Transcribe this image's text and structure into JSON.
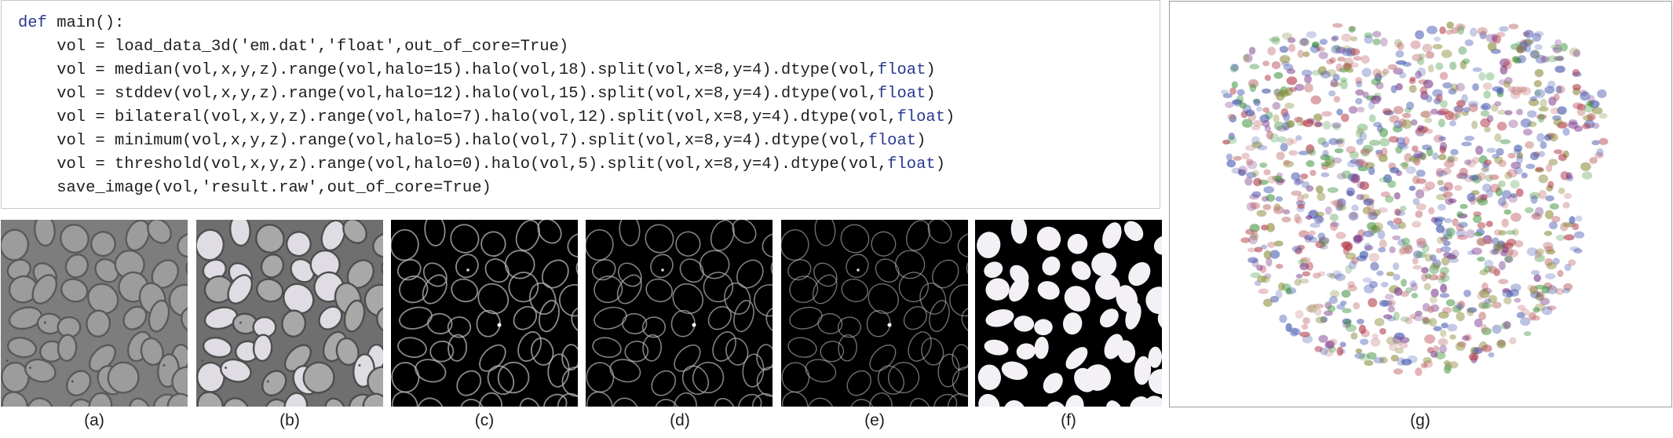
{
  "code": {
    "lines": [
      "def main():",
      "    vol = load_data_3d('em.dat','float',out_of_core=True)",
      "    vol = median(vol,x,y,z).range(vol,halo=15).halo(vol,18).split(vol,x=8,y=4).dtype(vol,float)",
      "    vol = stddev(vol,x,y,z).range(vol,halo=12).halo(vol,15).split(vol,x=8,y=4).dtype(vol,float)",
      "    vol = bilateral(vol,x,y,z).range(vol,halo=7).halo(vol,12).split(vol,x=8,y=4).dtype(vol,float)",
      "    vol = minimum(vol,x,y,z).range(vol,halo=5).halo(vol,7).split(vol,x=8,y=4).dtype(vol,float)",
      "    vol = threshold(vol,x,y,z).range(vol,halo=0).halo(vol,5).split(vol,x=8,y=4).dtype(vol,float)",
      "    save_image(vol,'result.raw',out_of_core=True)"
    ],
    "keyword_color": "#2b3990"
  },
  "panels": [
    {
      "caption": "(a)",
      "style": "em-raw"
    },
    {
      "caption": "(b)",
      "style": "em-median"
    },
    {
      "caption": "(c)",
      "style": "edges-stddev"
    },
    {
      "caption": "(d)",
      "style": "edges-bilateral"
    },
    {
      "caption": "(e)",
      "style": "edges-minimum"
    },
    {
      "caption": "(f)",
      "style": "binary-threshold"
    },
    {
      "caption": "(g)",
      "style": "3d-volume-render"
    }
  ]
}
